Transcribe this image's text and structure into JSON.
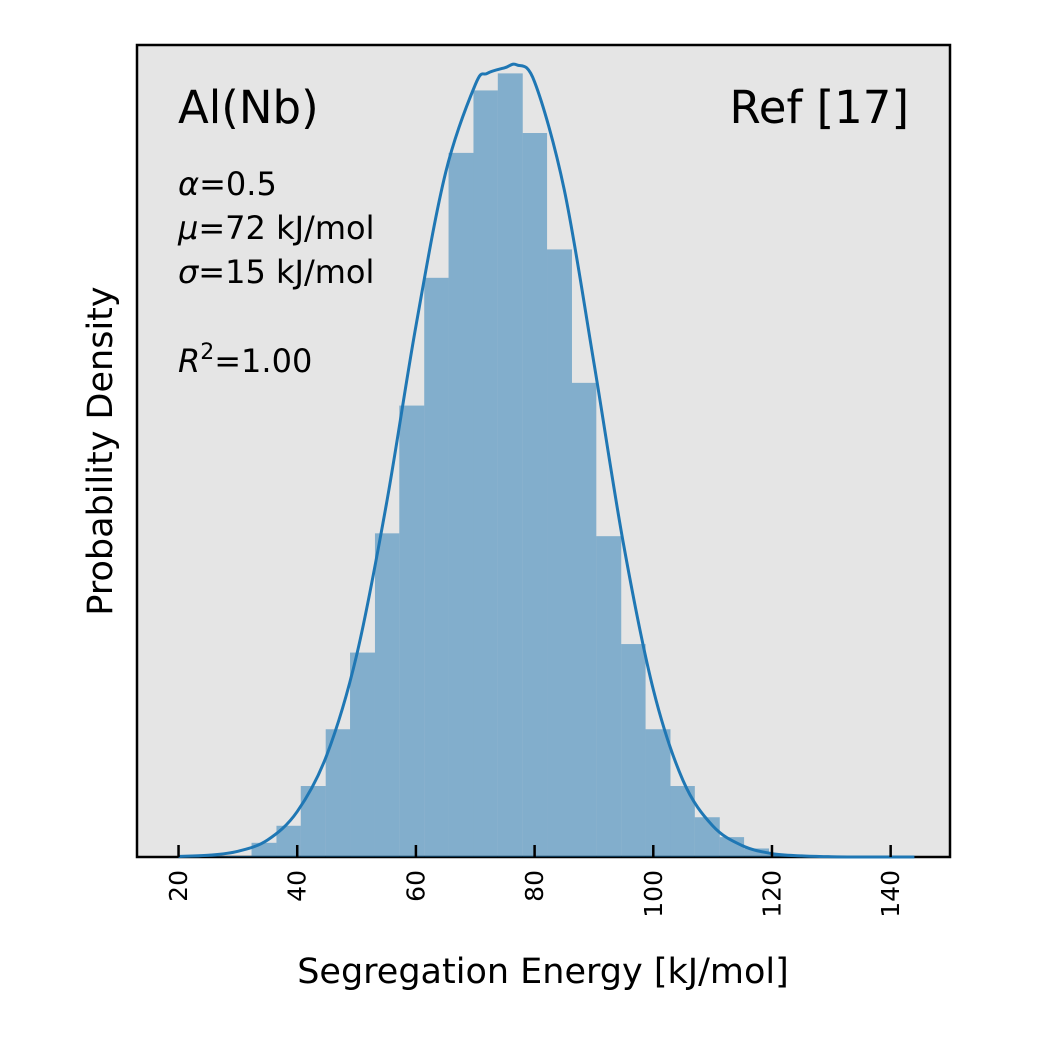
{
  "chart_data": {
    "type": "bar",
    "xlabel": "Segregation Energy [kJ/mol]",
    "ylabel": "Probability Density",
    "xlim": [
      13,
      150
    ],
    "xticks": [
      "20",
      "40",
      "60",
      "80",
      "100",
      "120",
      "140"
    ],
    "xtick_values": [
      20,
      40,
      60,
      80,
      100,
      120,
      140
    ],
    "xtick_rotation": -90,
    "yticks_shown": false,
    "ylim": [
      0,
      0.0286
    ],
    "grid": false,
    "background": "#e5e5e5",
    "series": [
      {
        "type": "histogram",
        "color": "#1f77b4",
        "bin_edges": [
          15.7,
          19.9,
          24.0,
          28.2,
          32.3,
          36.5,
          40.6,
          44.8,
          48.9,
          53.1,
          57.2,
          61.4,
          65.5,
          69.7,
          73.8,
          78.0,
          82.1,
          86.3,
          90.4,
          94.6,
          98.7,
          102.9,
          107.0,
          111.2,
          115.3,
          119.5,
          123.6,
          127.8,
          131.9,
          136.1,
          140.2,
          144.4
        ],
        "values": [
          0.0,
          2e-05,
          3e-05,
          4e-05,
          0.0005,
          0.0011,
          0.0025,
          0.0045,
          0.0072,
          0.0114,
          0.0159,
          0.0204,
          0.0248,
          0.027,
          0.0276,
          0.0255,
          0.0214,
          0.0167,
          0.0113,
          0.0075,
          0.0045,
          0.0025,
          0.0014,
          0.0007,
          0.0003,
          0.0001,
          4e-05,
          2e-05,
          1e-05,
          0.0,
          0.0
        ]
      },
      {
        "type": "line",
        "color": "#1f77b4",
        "x": [
          20,
          25,
          30,
          35,
          40,
          45,
          50,
          55,
          60,
          65,
          70,
          72,
          75,
          77,
          80,
          85,
          90,
          95,
          100,
          105,
          110,
          115,
          120,
          125,
          130,
          135,
          140,
          144
        ],
        "values": [
          2e-05,
          6e-05,
          0.0002,
          0.0006,
          0.0016,
          0.0036,
          0.0071,
          0.0124,
          0.0187,
          0.0241,
          0.0272,
          0.0276,
          0.0278,
          0.0279,
          0.0273,
          0.0235,
          0.0174,
          0.011,
          0.0059,
          0.0027,
          0.0011,
          0.0004,
          0.00012,
          4e-05,
          1e-05,
          0.0,
          0.0,
          0.0
        ]
      }
    ],
    "annotations": {
      "system": "Al(Nb)",
      "reference": "Ref [17]",
      "alpha_sym": "α",
      "alpha": "=0.5",
      "mu_sym": "μ",
      "mu": "=72 kJ/mol",
      "sigma_sym": "σ",
      "sigma": "=15 kJ/mol",
      "r2_sym": "R",
      "r2_exp": "2",
      "r2": "=1.00"
    }
  }
}
